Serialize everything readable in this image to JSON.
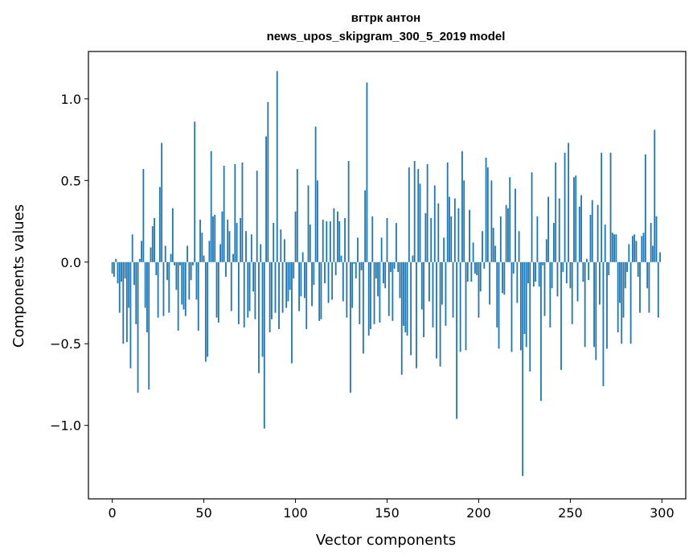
{
  "chart_data": {
    "type": "bar",
    "title_line1": "вгтрк антон",
    "title_line2": "news_upos_skipgram_300_5_2019 model",
    "xlabel": "Vector components",
    "ylabel": "Components values",
    "xlim": [
      -13,
      313
    ],
    "ylim": [
      -1.45,
      1.29
    ],
    "xticks": [
      0,
      50,
      100,
      150,
      200,
      250,
      300
    ],
    "yticks": [
      1.0,
      0.5,
      0.0,
      -0.5,
      -1.0
    ],
    "ytick_labels": [
      "1.0",
      "0.5",
      "0.0",
      "−0.5",
      "−1.0"
    ],
    "grid": false,
    "bar_color": "#1f77b4",
    "values": [
      -0.07,
      -0.09,
      0.02,
      -0.13,
      -0.31,
      -0.12,
      -0.5,
      -0.1,
      -0.49,
      -0.28,
      -0.65,
      0.17,
      -0.14,
      -0.38,
      -0.8,
      0.02,
      0.13,
      0.57,
      -0.28,
      -0.43,
      -0.78,
      0.09,
      0.22,
      0.27,
      -0.08,
      -0.34,
      0.46,
      0.73,
      -0.33,
      0.1,
      -0.11,
      -0.31,
      0.05,
      0.33,
      -0.02,
      -0.17,
      -0.42,
      -0.02,
      -0.26,
      -0.29,
      -0.33,
      0.1,
      -0.23,
      -0.11,
      -0.02,
      0.86,
      -0.23,
      -0.42,
      0.26,
      0.18,
      0.04,
      -0.61,
      -0.58,
      0.13,
      0.68,
      0.28,
      0.29,
      -0.34,
      -0.37,
      0.11,
      0.31,
      0.59,
      -0.09,
      0.26,
      0.19,
      -0.3,
      0.05,
      0.6,
      0.24,
      -0.38,
      0.27,
      0.61,
      -0.4,
      0.19,
      -0.34,
      -0.3,
      0.17,
      -0.18,
      -0.35,
      0.56,
      -0.68,
      0.11,
      -0.58,
      -1.02,
      0.77,
      0.98,
      -0.43,
      -0.35,
      0.24,
      -0.31,
      1.17,
      -0.41,
      0.2,
      -0.31,
      0.14,
      -0.28,
      -0.24,
      -0.17,
      -0.62,
      -0.1,
      0.31,
      0.57,
      -0.3,
      -0.21,
      0.06,
      -0.22,
      -0.41,
      0.47,
      0.23,
      -0.27,
      -0.14,
      0.83,
      0.5,
      -0.36,
      -0.35,
      0.26,
      -0.13,
      0.25,
      -0.25,
      0.25,
      -0.23,
      0.33,
      -0.08,
      0.31,
      0.25,
      0.04,
      -0.24,
      0.27,
      -0.34,
      0.62,
      -0.8,
      -0.28,
      -0.01,
      -0.1,
      0.15,
      -0.38,
      -0.05,
      -0.56,
      0.44,
      1.1,
      -0.45,
      -0.41,
      0.28,
      -0.38,
      -0.1,
      -0.21,
      -0.37,
      0.15,
      -0.13,
      -0.16,
      0.27,
      -0.33,
      -0.06,
      -0.36,
      -0.04,
      0.24,
      -0.06,
      -0.22,
      -0.69,
      -0.39,
      -0.43,
      -0.45,
      0.58,
      -0.57,
      0.04,
      0.62,
      -0.65,
      0.57,
      0.48,
      -0.29,
      -0.46,
      0.3,
      0.6,
      -0.24,
      0.27,
      -0.4,
      0.47,
      -0.59,
      0.36,
      -0.64,
      -0.26,
      0.15,
      -0.39,
      0.61,
      0.4,
      0.28,
      -0.34,
      0.39,
      -0.96,
      0.33,
      -0.55,
      0.68,
      0.5,
      -0.54,
      -0.12,
      0.32,
      -0.12,
      0.12,
      -0.07,
      -0.08,
      -0.34,
      -0.18,
      0.19,
      -0.04,
      0.64,
      0.58,
      -0.26,
      0.5,
      0.21,
      0.1,
      -0.4,
      -0.53,
      0.28,
      -0.19,
      -0.2,
      0.35,
      0.33,
      0.52,
      -0.55,
      -0.07,
      0.45,
      -0.25,
      0.19,
      -0.54,
      -1.31,
      -0.44,
      -0.52,
      -0.13,
      -0.67,
      0.55,
      -0.15,
      -0.12,
      0.28,
      -0.15,
      -0.85,
      -0.02,
      -0.33,
      0.14,
      0.4,
      -0.4,
      -0.16,
      0.24,
      0.61,
      -0.21,
      0.39,
      -0.66,
      -0.06,
      0.67,
      -0.13,
      0.73,
      -0.16,
      -0.38,
      0.52,
      0.53,
      -0.24,
      0.34,
      0.41,
      -0.12,
      -0.52,
      0.02,
      -0.11,
      0.29,
      0.38,
      -0.52,
      -0.6,
      0.35,
      -0.26,
      0.67,
      -0.76,
      0.23,
      -0.53,
      -0.08,
      0.67,
      0.18,
      0.17,
      0.17,
      -0.43,
      -0.25,
      -0.5,
      -0.34,
      -0.16,
      -0.06,
      0.11,
      -0.5,
      0.16,
      0.17,
      0.13,
      -0.09,
      -0.31,
      0.16,
      0.18,
      0.66,
      -0.16,
      -0.31,
      0.24,
      0.1,
      0.81,
      0.28,
      -0.34,
      0.06
    ]
  }
}
